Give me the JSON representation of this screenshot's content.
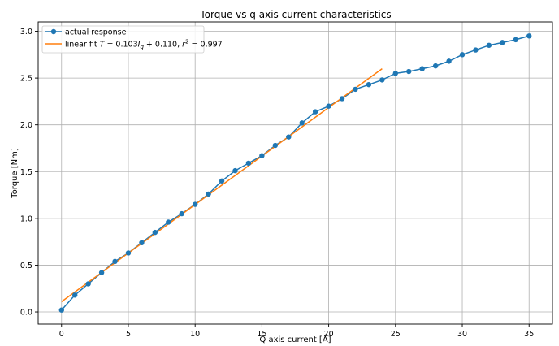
{
  "chart_data": {
    "type": "line",
    "title": "Torque vs q axis current characteristics",
    "xlabel": "Q axis current [A]",
    "ylabel": "Torque [Nm]",
    "xlim": [
      -1.75,
      36.75
    ],
    "ylim": [
      -0.13,
      3.1
    ],
    "x_ticks": [
      0,
      5,
      10,
      15,
      20,
      25,
      30,
      35
    ],
    "y_ticks": [
      0.0,
      0.5,
      1.0,
      1.5,
      2.0,
      2.5,
      3.0
    ],
    "x_tick_labels": [
      "0",
      "5",
      "10",
      "15",
      "20",
      "25",
      "30",
      "35"
    ],
    "y_tick_labels": [
      "0.0",
      "0.5",
      "1.0",
      "1.5",
      "2.0",
      "2.5",
      "3.0"
    ],
    "grid": true,
    "legend_position": "top-left",
    "series": [
      {
        "name": "actual response",
        "style": "line-marker",
        "color": "#1f77b4",
        "x": [
          0,
          1,
          2,
          3,
          4,
          5,
          6,
          7,
          8,
          9,
          10,
          11,
          12,
          13,
          14,
          15,
          16,
          17,
          18,
          19,
          20,
          21,
          22,
          23,
          24,
          25,
          26,
          27,
          28,
          29,
          30,
          31,
          32,
          33,
          34,
          35
        ],
        "values": [
          0.02,
          0.18,
          0.3,
          0.42,
          0.54,
          0.63,
          0.74,
          0.85,
          0.96,
          1.05,
          1.15,
          1.26,
          1.4,
          1.51,
          1.59,
          1.67,
          1.78,
          1.87,
          2.02,
          2.14,
          2.2,
          2.28,
          2.38,
          2.43,
          2.48,
          2.55,
          2.57,
          2.6,
          2.63,
          2.68,
          2.75,
          2.8,
          2.85,
          2.88,
          2.91,
          2.95
        ]
      },
      {
        "name": "linear fit",
        "legend_text": "linear fit T = 0.103I_q + 0.110, r^2 = 0.997",
        "style": "line",
        "color": "#ff7f0e",
        "x": [
          0,
          24
        ],
        "values": [
          0.11,
          2.6
        ]
      }
    ]
  }
}
